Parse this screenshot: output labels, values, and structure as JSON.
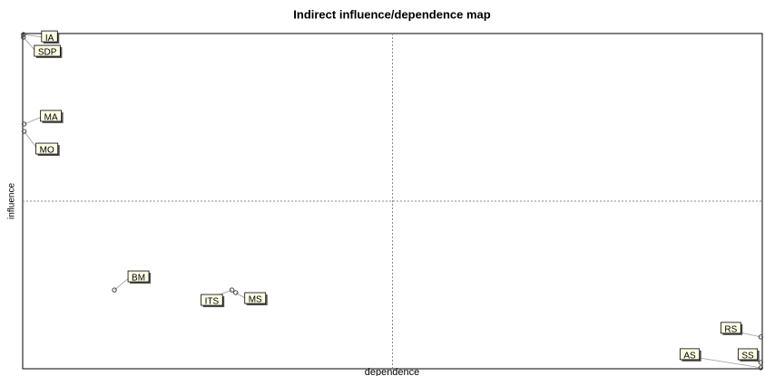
{
  "chart_data": {
    "type": "scatter",
    "title": "Indirect influence/dependence map",
    "x_label": "dependence",
    "y_label": "influence",
    "points": [
      "IA",
      "SDP",
      "MA",
      "MO",
      "BM",
      "ITS",
      "MS",
      "RS",
      "SS",
      "AS"
    ],
    "x": [
      0.1,
      0.1,
      0.2,
      0.2,
      12.4,
      28.3,
      28.8,
      99.8,
      99.8,
      99.8
    ],
    "y": [
      99.7,
      98.9,
      73,
      70.8,
      23.5,
      23.5,
      22.7,
      9.5,
      1.9,
      0.3
    ],
    "xlim": [
      0,
      100
    ],
    "ylim": [
      0,
      100
    ],
    "color": "#444444"
  }
}
